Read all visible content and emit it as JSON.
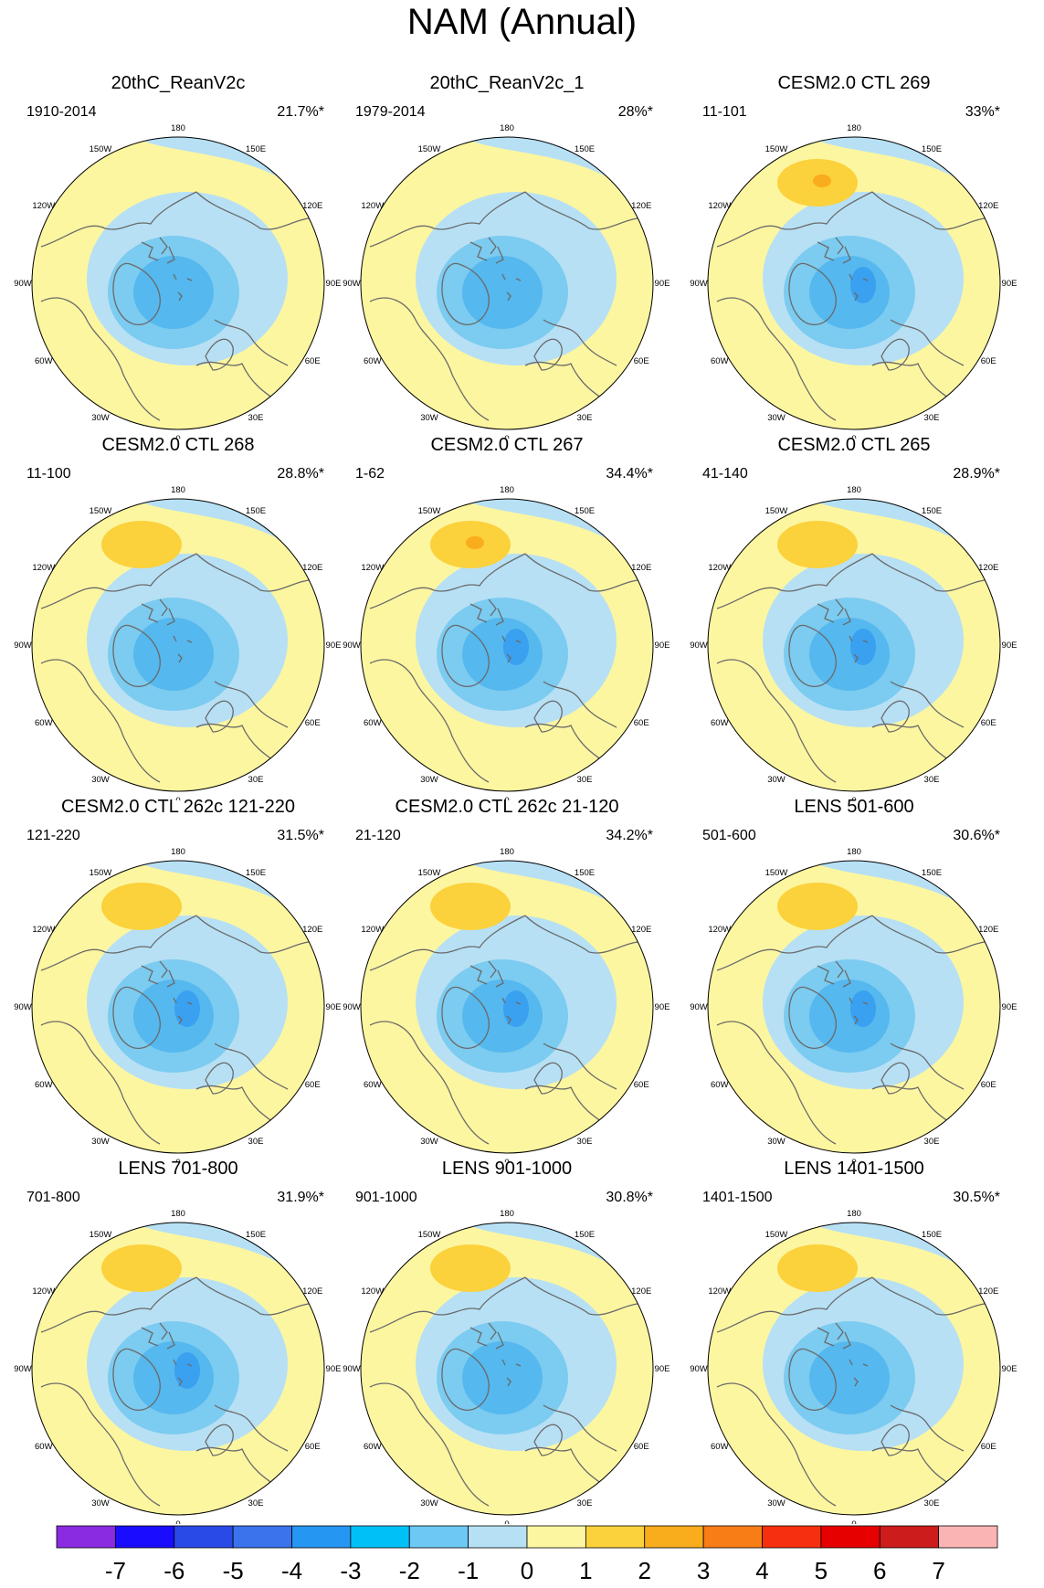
{
  "title": "NAM (Annual)",
  "colors": {
    "neg1": "#b7e0f4",
    "neg2": "#7ccbf0",
    "neg3": "#55b8ee",
    "neg4": "#3aa0f0",
    "pos0": "#fdf6a0",
    "pos1": "#fbd13c",
    "pos2": "#f9ac1c",
    "coast": "#6a6a6a"
  },
  "colorbar": {
    "colors": [
      "#8a2be2",
      "#1a0dff",
      "#2a4ae8",
      "#3a73ec",
      "#2596f2",
      "#00c0f8",
      "#6cc9f4",
      "#b6e0f4",
      "#fdf6a0",
      "#fbd13c",
      "#f9ac1c",
      "#f87d16",
      "#f6300e",
      "#e60000",
      "#cc1c1c",
      "#fbb4b4"
    ],
    "labels": [
      "-7",
      "-6",
      "-5",
      "-4",
      "-3",
      "-2",
      "-1",
      "0",
      "1",
      "2",
      "3",
      "4",
      "5",
      "6",
      "7"
    ]
  },
  "longitude_labels": [
    "180",
    "150E",
    "120E",
    "90E",
    "60E",
    "30E",
    "0",
    "30W",
    "60W",
    "90W",
    "120W",
    "150W"
  ],
  "panels": [
    {
      "title": "20thC_ReanV2c",
      "period": "1910-2014",
      "variance": "21.7%*",
      "high": 0,
      "inner": 0
    },
    {
      "title": "20thC_ReanV2c_1",
      "period": "1979-2014",
      "variance": "28%*",
      "high": 0,
      "inner": 0
    },
    {
      "title": "CESM2.0 CTL 269",
      "period": "11-101",
      "variance": "33%*",
      "high": 2,
      "inner": 1
    },
    {
      "title": "CESM2.0 CTL 268",
      "period": "11-100",
      "variance": "28.8%*",
      "high": 1,
      "inner": 0
    },
    {
      "title": "CESM2.0 CTL 267",
      "period": "1-62",
      "variance": "34.4%*",
      "high": 2,
      "inner": 1
    },
    {
      "title": "CESM2.0 CTL 265",
      "period": "41-140",
      "variance": "28.9%*",
      "high": 1,
      "inner": 1
    },
    {
      "title": "CESM2.0 CTL 262c 121-220",
      "period": "121-220",
      "variance": "31.5%*",
      "high": 1,
      "inner": 1
    },
    {
      "title": "CESM2.0 CTL 262c 21-120",
      "period": "21-120",
      "variance": "34.2%*",
      "high": 1,
      "inner": 1
    },
    {
      "title": "LENS 501-600",
      "period": "501-600",
      "variance": "30.6%*",
      "high": 1,
      "inner": 1
    },
    {
      "title": "LENS 701-800",
      "period": "701-800",
      "variance": "31.9%*",
      "high": 1,
      "inner": 1
    },
    {
      "title": "LENS 901-1000",
      "period": "901-1000",
      "variance": "30.8%*",
      "high": 1,
      "inner": 0
    },
    {
      "title": "LENS 1401-1500",
      "period": "1401-1500",
      "variance": "30.5%*",
      "high": 1,
      "inner": 0
    }
  ]
}
